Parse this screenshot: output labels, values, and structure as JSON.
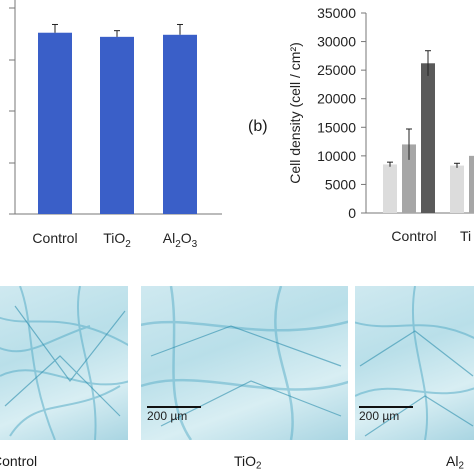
{
  "chart_data": [
    {
      "type": "bar",
      "categories": [
        "Control",
        "TiO2",
        "Al2O3"
      ],
      "values": [
        0.88,
        0.86,
        0.87
      ],
      "errors": [
        0.04,
        0.03,
        0.05
      ],
      "ylim": [
        0,
        1.0
      ],
      "color": "#3a5fc8",
      "title": "",
      "xlabel": "",
      "ylabel": ""
    },
    {
      "type": "bar",
      "panel_label": "(b)",
      "ylabel": "Cell density (cell / cm²)",
      "ylim": [
        0,
        35000
      ],
      "yticks": [
        "0",
        "5000",
        "10000",
        "15000",
        "20000",
        "25000",
        "30000",
        "35000"
      ],
      "categories": [
        "Control",
        "Ti"
      ],
      "series": [
        {
          "color": "#dcdcdc",
          "values": [
            8500,
            8300
          ],
          "errors": [
            400,
            400
          ]
        },
        {
          "color": "#a6a6a6",
          "values": [
            12000,
            10000
          ],
          "errors": [
            2700,
            0
          ]
        },
        {
          "color": "#5a5a5a",
          "values": [
            26200,
            null
          ],
          "errors": [
            2200,
            0
          ]
        }
      ]
    }
  ],
  "micrographs": [
    {
      "label": "Control",
      "scale": ""
    },
    {
      "label_main": "TiO",
      "label_sub": "2",
      "scale": "200 µm"
    },
    {
      "label_main": "Al",
      "label_sub": "2",
      "scale": "200 µm"
    }
  ],
  "ticklabels_a": {
    "control": "Control",
    "tio_main": "TiO",
    "tio_sub": "2",
    "al_main1": "Al",
    "al_sub1": "2",
    "al_main2": "O",
    "al_sub2": "3"
  }
}
